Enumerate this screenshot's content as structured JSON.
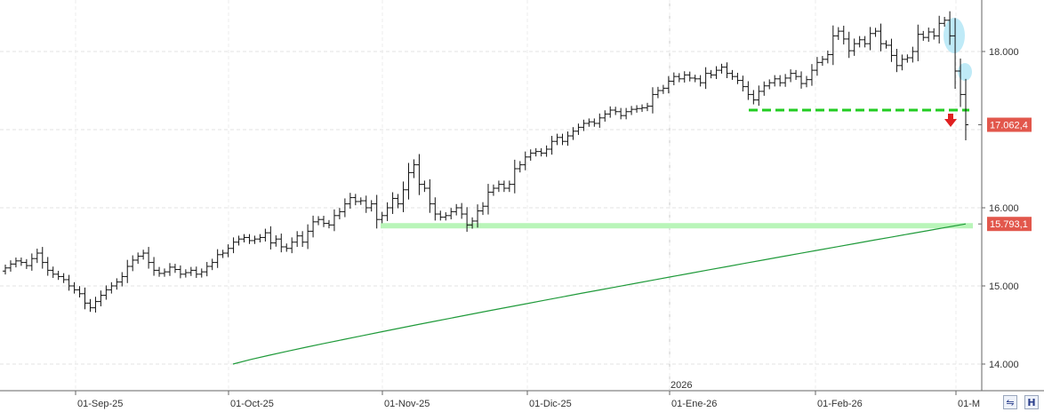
{
  "chart_data": {
    "type": "ohlc",
    "y_axis": {
      "ticks": [
        "18.000",
        "16.000",
        "15.000",
        "14.000"
      ],
      "position": "right"
    },
    "x_axis": {
      "labels": [
        "01-Sep-25",
        "01-Oct-25",
        "01-Nov-25",
        "01-Dic-25",
        "2026",
        "01-Ene-26",
        "01-Feb-26",
        "01-M"
      ]
    },
    "price_tags": [
      {
        "value": 17062.4,
        "label": "17.062,4",
        "color": "#e2574c"
      },
      {
        "value": 15793.1,
        "label": "15.793,1",
        "color": "#e2574c"
      }
    ],
    "closes": [
      15230,
      15280,
      15320,
      15300,
      15260,
      15350,
      15420,
      15300,
      15200,
      15150,
      15120,
      15080,
      15000,
      14950,
      14900,
      14780,
      14720,
      14800,
      14880,
      14950,
      15000,
      15050,
      15120,
      15250,
      15330,
      15380,
      15420,
      15300,
      15200,
      15160,
      15180,
      15240,
      15210,
      15150,
      15170,
      15200,
      15150,
      15180,
      15250,
      15300,
      15400,
      15420,
      15480,
      15560,
      15600,
      15620,
      15580,
      15600,
      15620,
      15680,
      15550,
      15600,
      15500,
      15480,
      15560,
      15640,
      15560,
      15700,
      15820,
      15850,
      15800,
      15780,
      15900,
      15950,
      16050,
      16130,
      16080,
      16090,
      16000,
      16050,
      15850,
      15900,
      16000,
      16120,
      16050,
      16230,
      16450,
      16550,
      16300,
      16250,
      16050,
      15920,
      15880,
      15900,
      15950,
      16000,
      15920,
      15780,
      15830,
      15960,
      16020,
      16200,
      16250,
      16300,
      16250,
      16300,
      16500,
      16550,
      16650,
      16700,
      16720,
      16700,
      16750,
      16850,
      16900,
      16850,
      16920,
      16980,
      17030,
      17080,
      17100,
      17080,
      17150,
      17200,
      17250,
      17230,
      17180,
      17230,
      17260,
      17270,
      17280,
      17300,
      17450,
      17500,
      17530,
      17620,
      17680,
      17650,
      17700,
      17660,
      17650,
      17600,
      17720,
      17700,
      17760,
      17800,
      17720,
      17680,
      17630,
      17550,
      17450,
      17380,
      17490,
      17560,
      17600,
      17650,
      17600,
      17660,
      17720,
      17680,
      17590,
      17640,
      17760,
      17860,
      17900,
      17960,
      18200,
      18260,
      18160,
      18010,
      18100,
      18150,
      18100,
      18230,
      18260,
      18100,
      18080,
      17950,
      17820,
      17900,
      17920,
      18000,
      18220,
      18180,
      18250,
      18200,
      18360,
      18400,
      18200,
      17750,
      17450,
      17062.4
    ],
    "moving_average": {
      "start": 14000,
      "end": 15793.1
    },
    "annotations": [
      {
        "type": "support-line",
        "value": 17400,
        "color": "#22cc22",
        "style": "dashed"
      },
      {
        "type": "support-band",
        "value": 15770,
        "color": "#b9f5b9"
      },
      {
        "type": "down-arrow",
        "color": "#e02020"
      },
      {
        "type": "highlight-ellipse",
        "color": "#bfeaf7"
      }
    ]
  },
  "icons": {
    "scroll": "scroll-arrows-icon",
    "tool": "h-tool-icon"
  }
}
